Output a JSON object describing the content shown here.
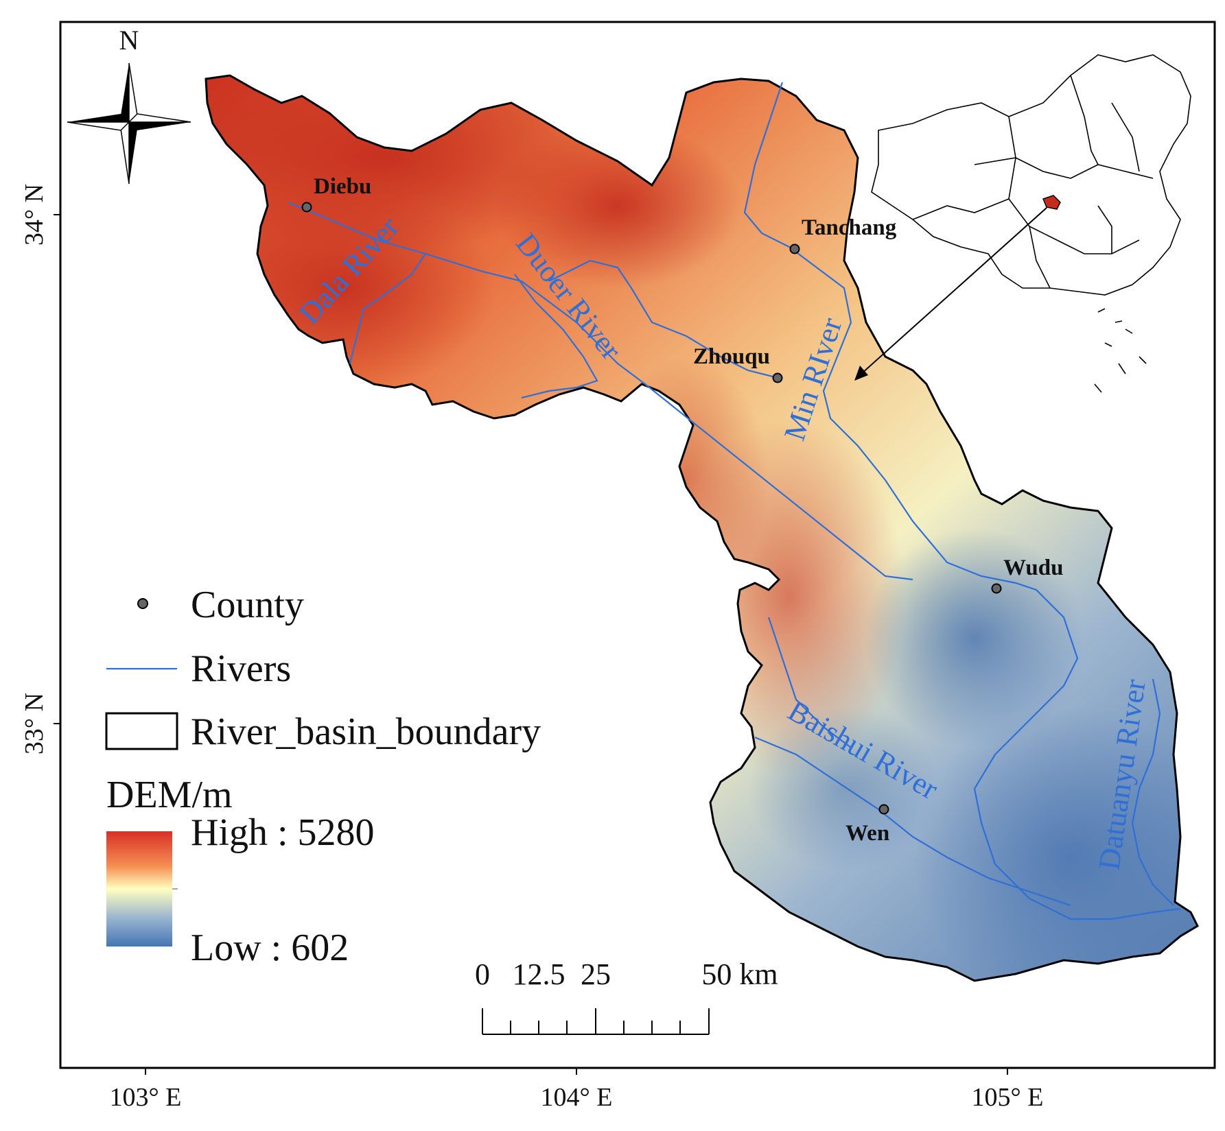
{
  "north_arrow": {
    "label": "N"
  },
  "axes": {
    "left": [
      {
        "label": "34° N",
        "value": 34
      },
      {
        "label": "33° N",
        "value": 33
      }
    ],
    "bottom": [
      {
        "label": "103° E",
        "value": 103
      },
      {
        "label": "104° E",
        "value": 104
      },
      {
        "label": "105° E",
        "value": 105
      }
    ]
  },
  "counties": [
    {
      "name": "Diebu",
      "lon": 103.37,
      "lat": 34.02
    },
    {
      "name": "Tanchang",
      "lon": 104.52,
      "lat": 33.92
    },
    {
      "name": "Zhouqu",
      "lon": 104.48,
      "lat": 33.66
    },
    {
      "name": "Wudu",
      "lon": 104.97,
      "lat": 33.27
    },
    {
      "name": "Wen",
      "lon": 104.7,
      "lat": 32.86
    }
  ],
  "rivers": [
    {
      "name": "Dala River"
    },
    {
      "name": "Duoer River"
    },
    {
      "name": "Min RIver"
    },
    {
      "name": "Baishui River"
    },
    {
      "name": "Datuanyu River"
    }
  ],
  "legend": {
    "county": "County",
    "rivers": "Rivers",
    "boundary": "River_basin_boundary",
    "dem_title": "DEM/m",
    "high_label": "High : 5280",
    "low_label": "Low : 602",
    "dem_high": 5280,
    "dem_low": 602
  },
  "scale_bar": {
    "labels": [
      "0",
      "12.5",
      "25",
      "50 km"
    ],
    "unit": "km"
  },
  "colors": {
    "river": "#2f6fd6",
    "dem_high": "#d73027",
    "dem_mid": "#ffffbf",
    "dem_low": "#4575b4",
    "boundary": "#000000"
  }
}
